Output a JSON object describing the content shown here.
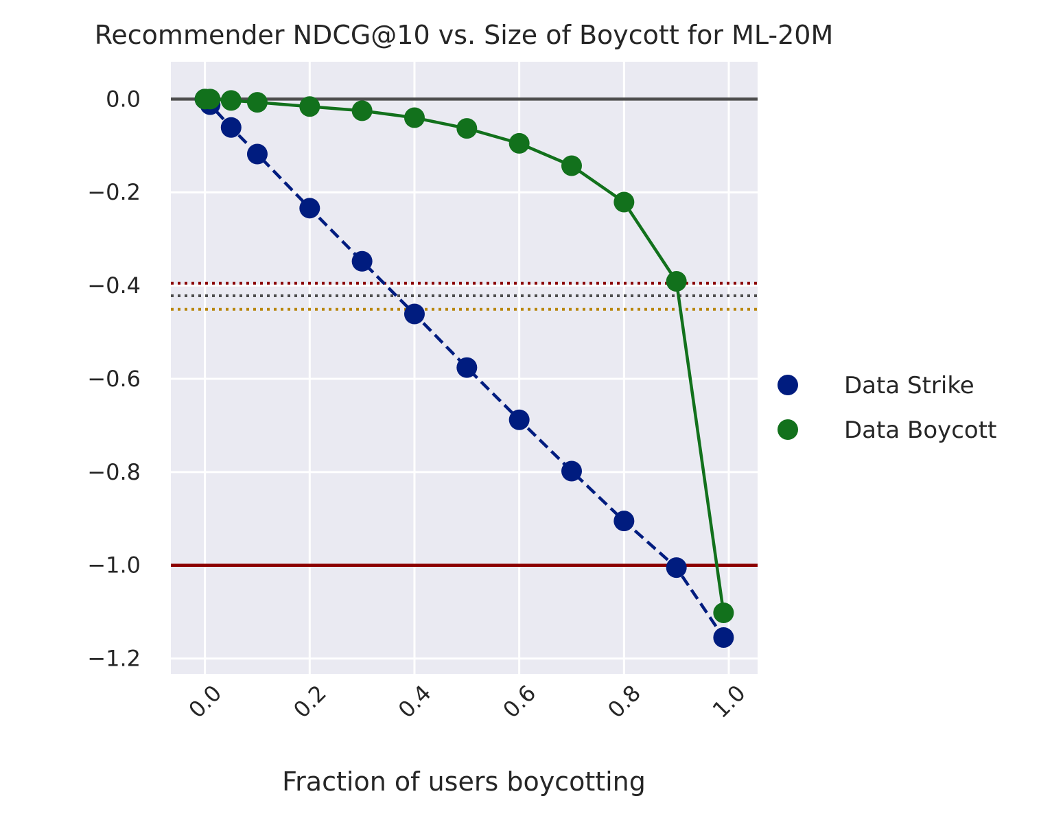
{
  "chart_data": {
    "type": "line",
    "title": "Recommender NDCG@10 vs. Size of Boycott for ML-20M",
    "xlabel": "Fraction of users boycotting",
    "ylabel": "",
    "xlim": [
      -0.065,
      1.055
    ],
    "ylim": [
      -1.233,
      0.08
    ],
    "xticks": [
      0.0,
      0.2,
      0.4,
      0.6,
      0.8,
      1.0
    ],
    "xtick_labels": [
      "0.0",
      "0.2",
      "0.4",
      "0.6",
      "0.8",
      "1.0"
    ],
    "yticks": [
      0.0,
      -0.2,
      -0.4,
      -0.6,
      -0.8,
      -1.0,
      -1.2
    ],
    "ytick_labels": [
      "0.0",
      "−0.2",
      "−0.4",
      "−0.6",
      "−0.8",
      "−1.0",
      "−1.2"
    ],
    "grid": true,
    "background": "#eaeaf2",
    "legend_position": "right",
    "series": [
      {
        "name": "Data Strike",
        "color": "#001c7f",
        "linestyle": "dashed",
        "x": [
          0.0,
          0.01,
          0.05,
          0.1,
          0.2,
          0.3,
          0.4,
          0.5,
          0.6,
          0.7,
          0.8,
          0.9,
          0.99
        ],
        "y": [
          0.0,
          -0.012,
          -0.061,
          -0.118,
          -0.234,
          -0.348,
          -0.461,
          -0.576,
          -0.688,
          -0.798,
          -0.905,
          -1.005,
          -1.155
        ]
      },
      {
        "name": "Data Boycott",
        "color": "#12711c",
        "linestyle": "solid",
        "x": [
          0.0,
          0.01,
          0.05,
          0.1,
          0.2,
          0.3,
          0.4,
          0.5,
          0.6,
          0.7,
          0.8,
          0.9,
          0.99
        ],
        "y": [
          0.0,
          0.0,
          -0.003,
          -0.007,
          -0.016,
          -0.025,
          -0.04,
          -0.063,
          -0.095,
          -0.143,
          -0.221,
          -0.391,
          -1.102
        ]
      }
    ],
    "reference_lines": [
      {
        "y": 0.0,
        "color": "#4d4d4d",
        "style": "solid"
      },
      {
        "y": -1.0,
        "color": "#8b0000",
        "style": "solid"
      },
      {
        "y": -0.395,
        "color": "#8b0000",
        "style": "dotted"
      },
      {
        "y": -0.422,
        "color": "#4d4d4d",
        "style": "dotted"
      },
      {
        "y": -0.451,
        "color": "#b8860b",
        "style": "dotted"
      }
    ]
  }
}
